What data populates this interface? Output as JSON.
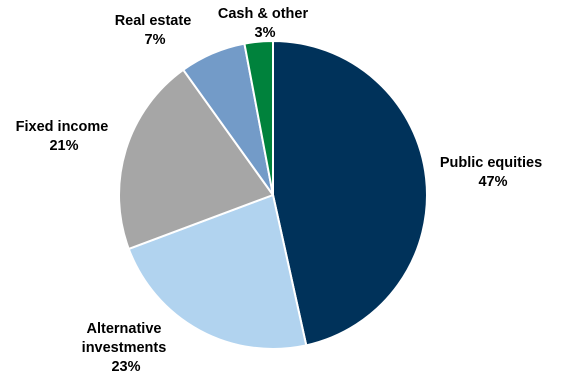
{
  "chart_data": {
    "type": "pie",
    "title": "",
    "slices": [
      {
        "name": "Public equities",
        "value": 47,
        "value_label": "47%",
        "color": "#00325a"
      },
      {
        "name": "Alternative investments",
        "name_lines": [
          "Alternative",
          "investments"
        ],
        "value": 23,
        "value_label": "23%",
        "color": "#b1d3ef"
      },
      {
        "name": "Fixed income",
        "value": 21,
        "value_label": "21%",
        "color": "#a6a6a6"
      },
      {
        "name": "Real estate",
        "value": 7,
        "value_label": "7%",
        "color": "#739bc8"
      },
      {
        "name": "Cash & other",
        "value": 3,
        "value_label": "3%",
        "color": "#00823c"
      }
    ],
    "start_angle_deg": 0,
    "direction": "clockwise",
    "legend": "none",
    "labels": "outside"
  }
}
